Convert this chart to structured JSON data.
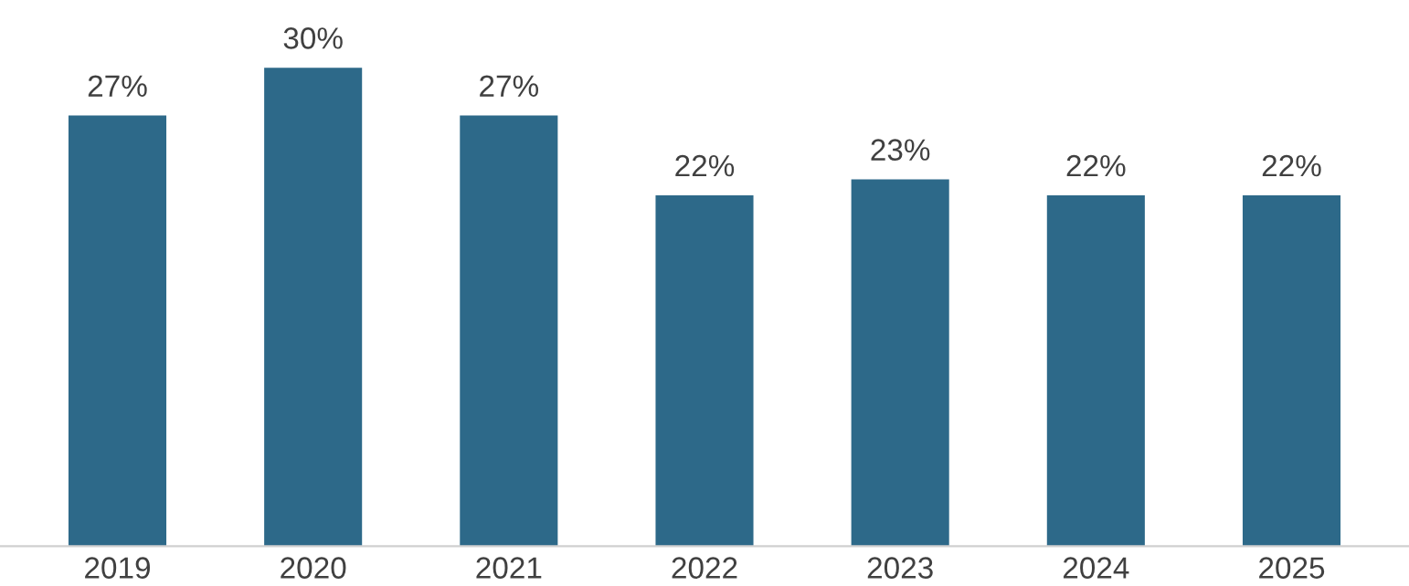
{
  "chart_data": {
    "type": "bar",
    "categories": [
      "2019",
      "2020",
      "2021",
      "2022",
      "2023",
      "2024",
      "2025"
    ],
    "values": [
      27,
      30,
      27,
      22,
      23,
      22,
      22
    ],
    "value_labels": [
      "27%",
      "30%",
      "27%",
      "22%",
      "23%",
      "22%",
      "22%"
    ],
    "color": "#2d6989"
  }
}
